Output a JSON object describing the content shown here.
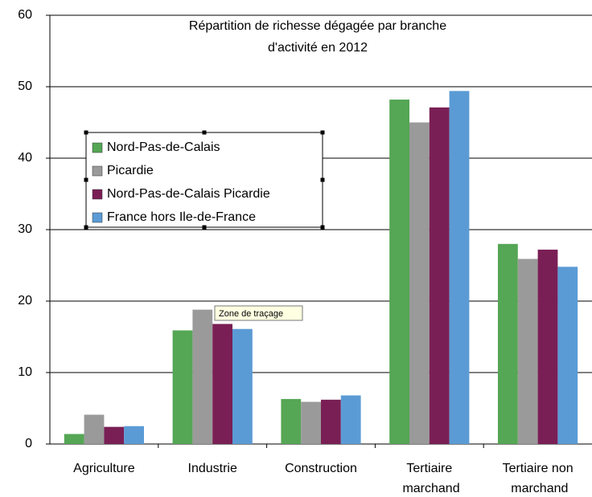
{
  "chart_data": {
    "type": "bar",
    "title": [
      "Répartition de richesse dégagée par branche",
      "d'activité en 2012"
    ],
    "categories": [
      "Agriculture",
      "Industrie",
      "Construction",
      "Tertiaire marchand",
      "Tertiaire non marchand"
    ],
    "series": [
      {
        "name": "Nord-Pas-de-Calais",
        "color": "#55a655",
        "values": [
          1.4,
          15.9,
          6.3,
          48.2,
          28.0
        ]
      },
      {
        "name": "Picardie",
        "color": "#9a9a9a",
        "values": [
          4.1,
          18.8,
          5.9,
          45.0,
          25.9
        ]
      },
      {
        "name": "Nord-Pas-de-Calais Picardie",
        "color": "#7a1f55",
        "values": [
          2.4,
          16.8,
          6.2,
          47.1,
          27.2
        ]
      },
      {
        "name": "France hors Ile-de-France",
        "color": "#5b9bd5",
        "values": [
          2.5,
          16.1,
          6.8,
          49.4,
          24.8
        ]
      }
    ],
    "ylim": [
      0,
      60
    ],
    "yticks": [
      0,
      10,
      20,
      30,
      40,
      50,
      60
    ],
    "grid": true,
    "tooltip": "Zone de traçage"
  }
}
